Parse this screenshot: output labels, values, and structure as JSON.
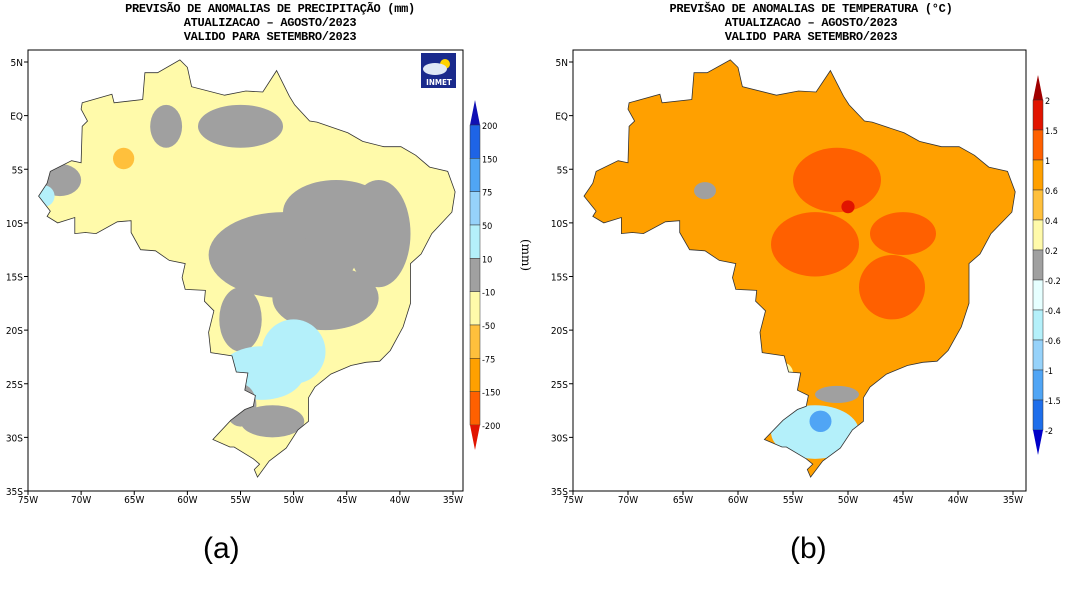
{
  "panels": [
    {
      "id": "a",
      "title_lines": [
        "PREVISÃO DE ANOMALIAS DE PRECIPITAÇÃO (mm)",
        "ATUALIZACAO – AGOSTO/2023",
        "VALIDO PARA SETEMBRO/2023"
      ],
      "caption": "(a)",
      "logo_text": "INMET",
      "colorbar": {
        "unit": "(mm)",
        "levels": [
          "200",
          "150",
          "75",
          "50",
          "10",
          "-10",
          "-50",
          "-75",
          "-150",
          "-200"
        ],
        "colors": [
          "#1010b4",
          "#1e64e6",
          "#50a5f5",
          "#96d2fa",
          "#b4f0fa",
          "#a0a0a0",
          "#fffaaa",
          "#ffc03c",
          "#ffa000",
          "#ff6000",
          "#e11400"
        ]
      },
      "base_color": "#fffaaa"
    },
    {
      "id": "b",
      "title_lines": [
        "PREVIŠAO DE ANOMALIAS DE TEMPERATURA (°C)",
        "ATUALIZACAO – AGOSTO/2023",
        "VALIDO PARA SETEMBRO/2023"
      ],
      "caption": "(b)",
      "colorbar": {
        "unit": "(°C)",
        "levels": [
          "2",
          "1.5",
          "1",
          "0.6",
          "0.4",
          "0.2",
          "-0.2",
          "-0.4",
          "-0.6",
          "-1",
          "-1.5",
          "-2"
        ],
        "colors": [
          "#a00000",
          "#e11400",
          "#ff6000",
          "#ffa000",
          "#ffc03c",
          "#fffaaa",
          "#a0a0a0",
          "#e6ffff",
          "#b4f0fa",
          "#96d2fa",
          "#50a5f5",
          "#1e6eeb",
          "#0000c8"
        ]
      },
      "base_color": "#ffa000"
    }
  ],
  "axes": {
    "lat_labels": [
      "5N",
      "EQ",
      "5S",
      "10S",
      "15S",
      "20S",
      "25S",
      "30S",
      "35S"
    ],
    "lon_labels": [
      "75W",
      "70W",
      "65W",
      "60W",
      "55W",
      "50W",
      "45W",
      "40W",
      "35W"
    ]
  }
}
